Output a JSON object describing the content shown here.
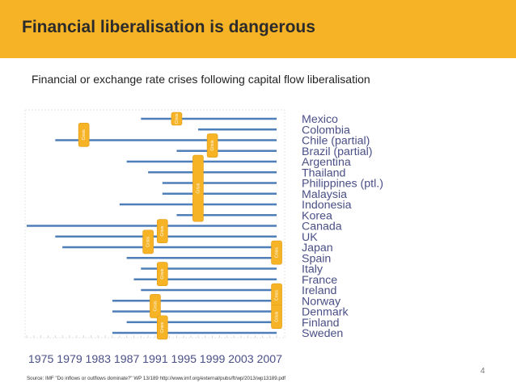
{
  "title": "Financial liberalisation is dangerous",
  "subtitle": "Financial or exchange rate crises following capital flow liberalisation",
  "page_number": "4",
  "source": "Source: IMF \"Do inflows or outflows dominate?\" WP 13/189 http://www.imf.org/external/pubs/ft/wp/2013/wp13189.pdf",
  "colors": {
    "banner": "#f5b325",
    "bar": "#4f7fb8",
    "crisis": "#f5b325",
    "label": "#4a4f86"
  },
  "chart_data": {
    "type": "timeline",
    "title": "Financial or exchange rate crises following capital flow liberalisation",
    "x_axis": {
      "min": 1973,
      "max": 2009,
      "tick_labels": [
        "1975",
        "1979",
        "1983",
        "1987",
        "1991",
        "1995",
        "1999",
        "2003",
        "2007"
      ]
    },
    "crisis_label": "Crisis",
    "series_end_year": 2008,
    "countries": [
      {
        "name": "Mexico",
        "liberalisation_start": 1989
      },
      {
        "name": "Colombia",
        "liberalisation_start": 1997
      },
      {
        "name": "Chile (partial)",
        "liberalisation_start": 1977
      },
      {
        "name": "Brazil (partial)",
        "liberalisation_start": 1994
      },
      {
        "name": "Argentina",
        "liberalisation_start": 1987
      },
      {
        "name": "Thailand",
        "liberalisation_start": 1990
      },
      {
        "name": "Philippines (ptl.)",
        "liberalisation_start": 1992
      },
      {
        "name": "Malaysia",
        "liberalisation_start": 1992
      },
      {
        "name": "Indonesia",
        "liberalisation_start": 1986
      },
      {
        "name": "Korea",
        "liberalisation_start": 1994
      },
      {
        "name": "Canada",
        "liberalisation_start": 1973
      },
      {
        "name": "UK",
        "liberalisation_start": 1977
      },
      {
        "name": "Japan",
        "liberalisation_start": 1978
      },
      {
        "name": "Spain",
        "liberalisation_start": 1987
      },
      {
        "name": "Italy",
        "liberalisation_start": 1989
      },
      {
        "name": "France",
        "liberalisation_start": 1988
      },
      {
        "name": "Ireland",
        "liberalisation_start": 1989
      },
      {
        "name": "Norway",
        "liberalisation_start": 1985
      },
      {
        "name": "Denmark",
        "liberalisation_start": 1985
      },
      {
        "name": "Finland",
        "liberalisation_start": 1987
      },
      {
        "name": "Sweden",
        "liberalisation_start": 1985
      }
    ],
    "crises": [
      {
        "year": 1994,
        "rows": [
          "Mexico"
        ]
      },
      {
        "year": 1981,
        "rows": [
          "Colombia",
          "Chile (partial)"
        ]
      },
      {
        "year": 1999,
        "rows": [
          "Chile (partial)",
          "Brazil (partial)"
        ]
      },
      {
        "year": 1997,
        "rows": [
          "Argentina",
          "Thailand",
          "Philippines (ptl.)",
          "Malaysia",
          "Indonesia",
          "Korea"
        ]
      },
      {
        "year": 1992,
        "rows": [
          "Canada",
          "UK"
        ]
      },
      {
        "year": 1990,
        "rows": [
          "UK",
          "Japan"
        ]
      },
      {
        "year": 2008,
        "rows": [
          "Japan",
          "Spain"
        ]
      },
      {
        "year": 1992,
        "rows": [
          "Italy",
          "France"
        ]
      },
      {
        "year": 2008,
        "rows": [
          "Ireland",
          "Norway"
        ]
      },
      {
        "year": 1991,
        "rows": [
          "Norway",
          "Denmark"
        ]
      },
      {
        "year": 2008,
        "rows": [
          "Denmark",
          "Finland"
        ]
      },
      {
        "year": 1992,
        "rows": [
          "Finland",
          "Sweden"
        ]
      }
    ]
  }
}
